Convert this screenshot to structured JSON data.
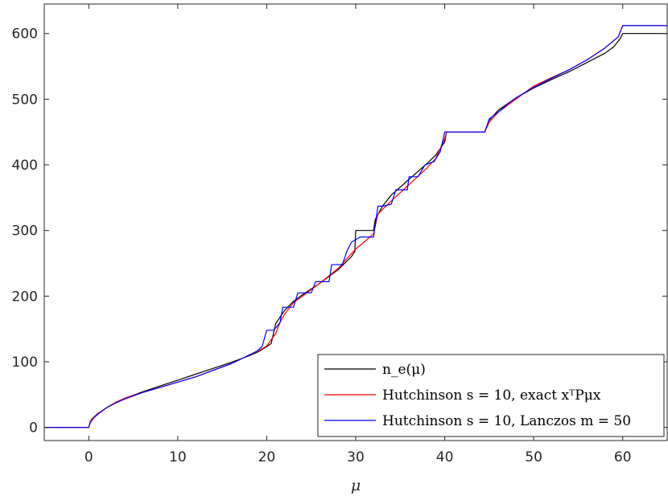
{
  "chart_data": {
    "type": "line",
    "title": "",
    "xlabel": "μ",
    "ylabel": "",
    "xlim": [
      -5,
      65
    ],
    "ylim": [
      -20,
      645
    ],
    "xticks": [
      0,
      10,
      20,
      30,
      40,
      50,
      60
    ],
    "yticks": [
      0,
      100,
      200,
      300,
      400,
      500,
      600
    ],
    "grid": false,
    "legend_position": "bottom-right",
    "series": [
      {
        "name": "n_e(μ)",
        "color": "#000000",
        "points": [
          [
            -5,
            0
          ],
          [
            0,
            0
          ],
          [
            0.2,
            10
          ],
          [
            0.5,
            15
          ],
          [
            1,
            20
          ],
          [
            2,
            30
          ],
          [
            3,
            38
          ],
          [
            4,
            44
          ],
          [
            5,
            49
          ],
          [
            6,
            54
          ],
          [
            8,
            63
          ],
          [
            10,
            72
          ],
          [
            12,
            81
          ],
          [
            14,
            90
          ],
          [
            16,
            99
          ],
          [
            18,
            109
          ],
          [
            19,
            115
          ],
          [
            20,
            123
          ],
          [
            20.5,
            128
          ],
          [
            21,
            158
          ],
          [
            21.5,
            168
          ],
          [
            22,
            178
          ],
          [
            23,
            192
          ],
          [
            24,
            202
          ],
          [
            26,
            220
          ],
          [
            28,
            240
          ],
          [
            29.5,
            260
          ],
          [
            29.9,
            268
          ],
          [
            30,
            300
          ],
          [
            32,
            300
          ],
          [
            32.2,
            317
          ],
          [
            33,
            337
          ],
          [
            34,
            354
          ],
          [
            36,
            378
          ],
          [
            38,
            402
          ],
          [
            39,
            415
          ],
          [
            40,
            435
          ],
          [
            40.2,
            450
          ],
          [
            44.5,
            450
          ],
          [
            45,
            468
          ],
          [
            46,
            483
          ],
          [
            48,
            502
          ],
          [
            50,
            517
          ],
          [
            52,
            530
          ],
          [
            54,
            542
          ],
          [
            56,
            556
          ],
          [
            58,
            570
          ],
          [
            59,
            580
          ],
          [
            59.7,
            592
          ],
          [
            60,
            600
          ],
          [
            65,
            600
          ]
        ]
      },
      {
        "name": "Hutchinson s = 10, exact xᵀPμx",
        "color": "#ff0000",
        "points": [
          [
            -5,
            0
          ],
          [
            0,
            0
          ],
          [
            0.2,
            10
          ],
          [
            0.5,
            15
          ],
          [
            1,
            21
          ],
          [
            2,
            30
          ],
          [
            3,
            38
          ],
          [
            4,
            44
          ],
          [
            5,
            49
          ],
          [
            6,
            53
          ],
          [
            8,
            61
          ],
          [
            10,
            69
          ],
          [
            12,
            77
          ],
          [
            14,
            87
          ],
          [
            16,
            97
          ],
          [
            18,
            110
          ],
          [
            19,
            116
          ],
          [
            20,
            124
          ],
          [
            21,
            143
          ],
          [
            21.5,
            160
          ],
          [
            22,
            172
          ],
          [
            23,
            190
          ],
          [
            24,
            200
          ],
          [
            26,
            220
          ],
          [
            28,
            242
          ],
          [
            29,
            257
          ],
          [
            30,
            272
          ],
          [
            31,
            283
          ],
          [
            32,
            295
          ],
          [
            32.5,
            325
          ],
          [
            33,
            332
          ],
          [
            34,
            345
          ],
          [
            36,
            370
          ],
          [
            38,
            395
          ],
          [
            39,
            410
          ],
          [
            40,
            440
          ],
          [
            40.2,
            450
          ],
          [
            44.5,
            450
          ],
          [
            45,
            465
          ],
          [
            46,
            480
          ],
          [
            48,
            500
          ],
          [
            50,
            520
          ],
          [
            52,
            533
          ],
          [
            54,
            545
          ],
          [
            56,
            560
          ],
          [
            58,
            578
          ],
          [
            59.5,
            595
          ],
          [
            60,
            612
          ],
          [
            65,
            612
          ]
        ]
      },
      {
        "name": "Hutchinson s = 10, Lanczos m = 50",
        "color": "#0000ff",
        "points": [
          [
            -5,
            0
          ],
          [
            0,
            0
          ],
          [
            0.2,
            8
          ],
          [
            0.6,
            15
          ],
          [
            1.2,
            22
          ],
          [
            2,
            30
          ],
          [
            3,
            37
          ],
          [
            4,
            43
          ],
          [
            5,
            48
          ],
          [
            6,
            53
          ],
          [
            8,
            61
          ],
          [
            10,
            69
          ],
          [
            12,
            77
          ],
          [
            14,
            87
          ],
          [
            16,
            97
          ],
          [
            18,
            110
          ],
          [
            19,
            117
          ],
          [
            19.5,
            124
          ],
          [
            20,
            148
          ],
          [
            20.8,
            148
          ],
          [
            21.5,
            160
          ],
          [
            21.8,
            183
          ],
          [
            23,
            183
          ],
          [
            23.5,
            205
          ],
          [
            25,
            205
          ],
          [
            25.5,
            222
          ],
          [
            27,
            222
          ],
          [
            27.3,
            248
          ],
          [
            28.5,
            248
          ],
          [
            29,
            268
          ],
          [
            29.5,
            282
          ],
          [
            30.5,
            290
          ],
          [
            31,
            290
          ],
          [
            32,
            290
          ],
          [
            32.5,
            337
          ],
          [
            33,
            337
          ],
          [
            34,
            340
          ],
          [
            34.5,
            362
          ],
          [
            35.8,
            362
          ],
          [
            36,
            382
          ],
          [
            37,
            382
          ],
          [
            37.8,
            400
          ],
          [
            38.8,
            405
          ],
          [
            39.5,
            420
          ],
          [
            40,
            450
          ],
          [
            44.5,
            450
          ],
          [
            45,
            470
          ],
          [
            46,
            480
          ],
          [
            47,
            492
          ],
          [
            48,
            502
          ],
          [
            50,
            518
          ],
          [
            52,
            532
          ],
          [
            54,
            545
          ],
          [
            56,
            560
          ],
          [
            58,
            578
          ],
          [
            59.5,
            595
          ],
          [
            60,
            612
          ],
          [
            65,
            612
          ]
        ]
      }
    ]
  }
}
